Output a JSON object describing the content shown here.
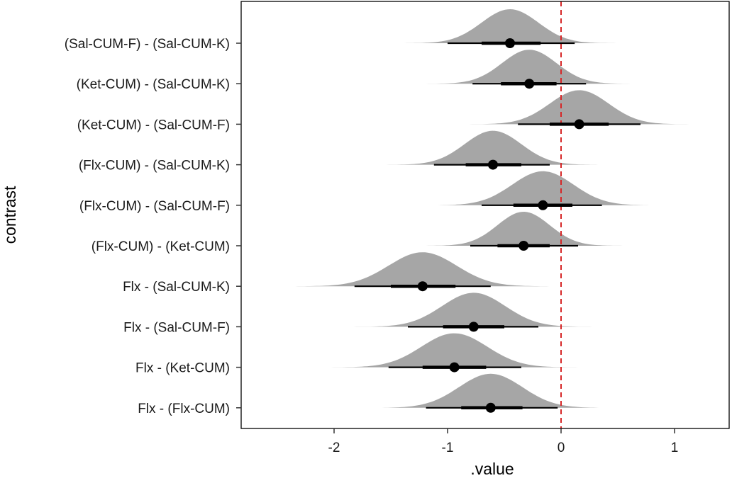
{
  "chart_data": {
    "type": "halfeye",
    "title": "",
    "xlabel": ".value",
    "ylabel": "contrast",
    "xlim": [
      -2.8,
      1.5
    ],
    "x_ticks": [
      -2,
      -1,
      0,
      1
    ],
    "x_tick_labels": [
      "-2",
      "-1",
      "0",
      "1"
    ],
    "reference_line": {
      "x": 0,
      "style": "dashed",
      "color": "#d62728"
    },
    "grid": false,
    "categories": [
      "(Sal-CUM-F) - (Sal-CUM-K)",
      "(Ket-CUM) - (Sal-CUM-K)",
      "(Ket-CUM) - (Sal-CUM-F)",
      "(Flx-CUM) - (Sal-CUM-K)",
      "(Flx-CUM) - (Sal-CUM-F)",
      "(Flx-CUM) - (Ket-CUM)",
      "Flx - (Sal-CUM-K)",
      "Flx - (Sal-CUM-F)",
      "Flx - (Ket-CUM)",
      "Flx - (Flx-CUM)"
    ],
    "series": [
      {
        "median": -0.45,
        "sd": 0.25,
        "interval_66": [
          -0.7,
          -0.18
        ],
        "interval_95": [
          -1.0,
          0.12
        ],
        "range": [
          -1.45,
          0.65
        ]
      },
      {
        "median": -0.28,
        "sd": 0.24,
        "interval_66": [
          -0.53,
          -0.04
        ],
        "interval_95": [
          -0.78,
          0.22
        ],
        "range": [
          -1.3,
          0.7
        ]
      },
      {
        "median": 0.16,
        "sd": 0.26,
        "interval_66": [
          -0.1,
          0.42
        ],
        "interval_95": [
          -0.38,
          0.7
        ],
        "range": [
          -0.9,
          1.15
        ]
      },
      {
        "median": -0.6,
        "sd": 0.25,
        "interval_66": [
          -0.84,
          -0.35
        ],
        "interval_95": [
          -1.12,
          -0.1
        ],
        "range": [
          -1.65,
          0.35
        ]
      },
      {
        "median": -0.16,
        "sd": 0.27,
        "interval_66": [
          -0.42,
          0.1
        ],
        "interval_95": [
          -0.7,
          0.36
        ],
        "range": [
          -1.25,
          0.9
        ]
      },
      {
        "median": -0.33,
        "sd": 0.23,
        "interval_66": [
          -0.56,
          -0.1
        ],
        "interval_95": [
          -0.8,
          0.15
        ],
        "range": [
          -1.3,
          0.7
        ]
      },
      {
        "median": -1.22,
        "sd": 0.3,
        "interval_66": [
          -1.5,
          -0.93
        ],
        "interval_95": [
          -1.82,
          -0.62
        ],
        "range": [
          -2.45,
          -0.05
        ]
      },
      {
        "median": -0.77,
        "sd": 0.28,
        "interval_66": [
          -1.04,
          -0.5
        ],
        "interval_95": [
          -1.35,
          -0.2
        ],
        "range": [
          -1.85,
          0.35
        ]
      },
      {
        "median": -0.94,
        "sd": 0.29,
        "interval_66": [
          -1.22,
          -0.66
        ],
        "interval_95": [
          -1.52,
          -0.35
        ],
        "range": [
          -2.05,
          0.15
        ]
      },
      {
        "median": -0.62,
        "sd": 0.28,
        "interval_66": [
          -0.88,
          -0.34
        ],
        "interval_95": [
          -1.19,
          -0.03
        ],
        "range": [
          -1.6,
          0.55
        ]
      }
    ],
    "colors": {
      "density": "#a6a6a6",
      "interval": "#000000",
      "reference": "#d62728",
      "frame": "#000000"
    }
  }
}
